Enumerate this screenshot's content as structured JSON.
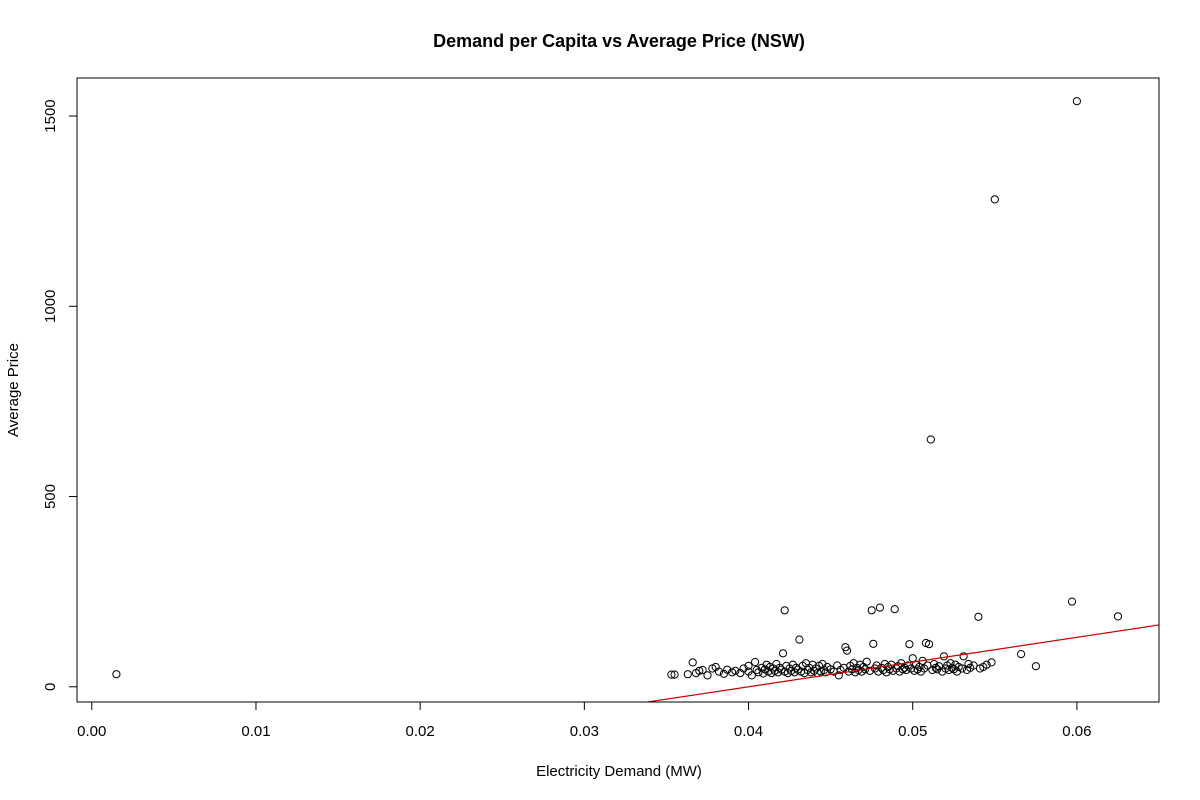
{
  "chart_data": {
    "type": "scatter",
    "title": "Demand per Capita vs Average Price (NSW)",
    "xlabel": "Electricity Demand (MW)",
    "ylabel": "Average Price",
    "xlim": [
      -0.0009,
      0.065
    ],
    "ylim": [
      -40,
      1600
    ],
    "xticks": [
      0.0,
      0.01,
      0.02,
      0.03,
      0.04,
      0.05,
      0.06
    ],
    "xtick_labels": [
      "0.00",
      "0.01",
      "0.02",
      "0.03",
      "0.04",
      "0.05",
      "0.06"
    ],
    "yticks": [
      0,
      500,
      1000,
      1500
    ],
    "ytick_labels": [
      "0",
      "500",
      "1000",
      "1500"
    ],
    "grid": false,
    "series": [
      {
        "points": [
          [
            0.0015,
            33
          ],
          [
            0.0353,
            32
          ],
          [
            0.0355,
            32
          ],
          [
            0.0363,
            33
          ],
          [
            0.0366,
            64
          ],
          [
            0.0368,
            36
          ],
          [
            0.037,
            42
          ],
          [
            0.0372,
            44
          ],
          [
            0.0375,
            30
          ],
          [
            0.0378,
            48
          ],
          [
            0.038,
            52
          ],
          [
            0.0382,
            40
          ],
          [
            0.0385,
            34
          ],
          [
            0.0387,
            45
          ],
          [
            0.039,
            38
          ],
          [
            0.0392,
            42
          ],
          [
            0.0395,
            36
          ],
          [
            0.0397,
            48
          ],
          [
            0.04,
            40
          ],
          [
            0.04,
            55
          ],
          [
            0.0402,
            30
          ],
          [
            0.0404,
            65
          ],
          [
            0.0405,
            44
          ],
          [
            0.0406,
            38
          ],
          [
            0.0408,
            50
          ],
          [
            0.0409,
            35
          ],
          [
            0.041,
            46
          ],
          [
            0.0411,
            58
          ],
          [
            0.0412,
            40
          ],
          [
            0.0413,
            52
          ],
          [
            0.0414,
            36
          ],
          [
            0.0415,
            48
          ],
          [
            0.0416,
            42
          ],
          [
            0.0417,
            60
          ],
          [
            0.0418,
            38
          ],
          [
            0.0419,
            50
          ],
          [
            0.042,
            45
          ],
          [
            0.0421,
            88
          ],
          [
            0.0422,
            201
          ],
          [
            0.0422,
            40
          ],
          [
            0.0423,
            55
          ],
          [
            0.0424,
            36
          ],
          [
            0.0425,
            48
          ],
          [
            0.0426,
            42
          ],
          [
            0.0427,
            58
          ],
          [
            0.0428,
            38
          ],
          [
            0.0429,
            50
          ],
          [
            0.043,
            45
          ],
          [
            0.0431,
            124
          ],
          [
            0.0432,
            40
          ],
          [
            0.0433,
            55
          ],
          [
            0.0434,
            36
          ],
          [
            0.0435,
            62
          ],
          [
            0.0436,
            44
          ],
          [
            0.0437,
            50
          ],
          [
            0.0438,
            38
          ],
          [
            0.0439,
            58
          ],
          [
            0.044,
            42
          ],
          [
            0.0441,
            48
          ],
          [
            0.0442,
            36
          ],
          [
            0.0443,
            55
          ],
          [
            0.0444,
            40
          ],
          [
            0.0445,
            60
          ],
          [
            0.0446,
            44
          ],
          [
            0.0447,
            38
          ],
          [
            0.0448,
            52
          ],
          [
            0.045,
            46
          ],
          [
            0.0452,
            40
          ],
          [
            0.0454,
            56
          ],
          [
            0.0455,
            30
          ],
          [
            0.0456,
            44
          ],
          [
            0.0458,
            50
          ],
          [
            0.0459,
            104
          ],
          [
            0.046,
            95
          ],
          [
            0.0461,
            40
          ],
          [
            0.0462,
            55
          ],
          [
            0.0463,
            46
          ],
          [
            0.0464,
            62
          ],
          [
            0.0465,
            38
          ],
          [
            0.0466,
            50
          ],
          [
            0.0467,
            44
          ],
          [
            0.0468,
            58
          ],
          [
            0.0469,
            40
          ],
          [
            0.047,
            52
          ],
          [
            0.0471,
            46
          ],
          [
            0.0472,
            66
          ],
          [
            0.0474,
            42
          ],
          [
            0.0475,
            201
          ],
          [
            0.0476,
            113
          ],
          [
            0.0477,
            48
          ],
          [
            0.0478,
            56
          ],
          [
            0.0479,
            40
          ],
          [
            0.048,
            208
          ],
          [
            0.0481,
            50
          ],
          [
            0.0482,
            44
          ],
          [
            0.0483,
            60
          ],
          [
            0.0484,
            38
          ],
          [
            0.0485,
            52
          ],
          [
            0.0486,
            46
          ],
          [
            0.0487,
            58
          ],
          [
            0.0488,
            42
          ],
          [
            0.0489,
            204
          ],
          [
            0.049,
            48
          ],
          [
            0.0491,
            54
          ],
          [
            0.0492,
            40
          ],
          [
            0.0493,
            62
          ],
          [
            0.0494,
            46
          ],
          [
            0.0495,
            50
          ],
          [
            0.0496,
            44
          ],
          [
            0.0497,
            56
          ],
          [
            0.0498,
            112
          ],
          [
            0.0499,
            48
          ],
          [
            0.05,
            75
          ],
          [
            0.0501,
            42
          ],
          [
            0.0502,
            58
          ],
          [
            0.0503,
            46
          ],
          [
            0.0504,
            52
          ],
          [
            0.0505,
            40
          ],
          [
            0.0506,
            68
          ],
          [
            0.0507,
            48
          ],
          [
            0.0508,
            115
          ],
          [
            0.0509,
            56
          ],
          [
            0.051,
            112
          ],
          [
            0.0511,
            650
          ],
          [
            0.0512,
            44
          ],
          [
            0.0513,
            60
          ],
          [
            0.0514,
            50
          ],
          [
            0.0515,
            46
          ],
          [
            0.0516,
            54
          ],
          [
            0.0518,
            40
          ],
          [
            0.0519,
            80
          ],
          [
            0.052,
            48
          ],
          [
            0.0521,
            56
          ],
          [
            0.0522,
            44
          ],
          [
            0.0523,
            62
          ],
          [
            0.0524,
            50
          ],
          [
            0.0525,
            46
          ],
          [
            0.0526,
            58
          ],
          [
            0.0527,
            40
          ],
          [
            0.0528,
            52
          ],
          [
            0.053,
            48
          ],
          [
            0.0531,
            80
          ],
          [
            0.0533,
            44
          ],
          [
            0.0534,
            60
          ],
          [
            0.0535,
            50
          ],
          [
            0.0537,
            56
          ],
          [
            0.054,
            184
          ],
          [
            0.0541,
            48
          ],
          [
            0.0543,
            52
          ],
          [
            0.0545,
            58
          ],
          [
            0.0548,
            64
          ],
          [
            0.055,
            1281
          ],
          [
            0.0566,
            86
          ],
          [
            0.0575,
            54
          ],
          [
            0.0597,
            224
          ],
          [
            0.06,
            1539
          ],
          [
            0.0625,
            185
          ]
        ]
      }
    ],
    "fit_line": {
      "intercept": -260.0,
      "slope": 6500.0
    }
  }
}
